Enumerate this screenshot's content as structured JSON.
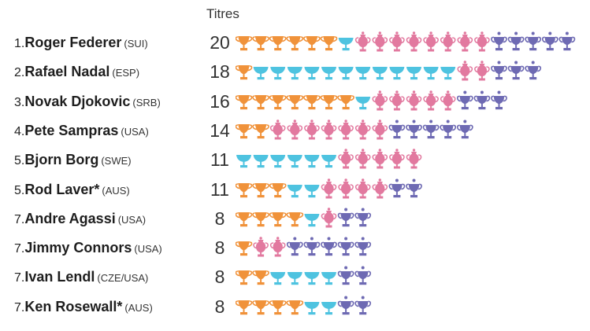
{
  "chart_data": {
    "type": "pictogram",
    "column_header": "Titres",
    "colors": {
      "orange": "#f0923a",
      "blue": "#4ec3e0",
      "pink": "#e2799f",
      "purple": "#6e6ab3"
    },
    "rows": [
      {
        "rank": "1.",
        "name": "Roger Federer",
        "country": "(SUI)",
        "titles": "20",
        "segments": {
          "orange": 6,
          "blue": 1,
          "pink": 8,
          "purple": 5
        }
      },
      {
        "rank": "2.",
        "name": "Rafael Nadal",
        "country": "(ESP)",
        "titles": "18",
        "segments": {
          "orange": 1,
          "blue": 12,
          "pink": 2,
          "purple": 3
        }
      },
      {
        "rank": "3.",
        "name": "Novak Djokovic",
        "country": "(SRB)",
        "titles": "16",
        "segments": {
          "orange": 7,
          "blue": 1,
          "pink": 5,
          "purple": 3
        }
      },
      {
        "rank": "4.",
        "name": "Pete Sampras",
        "country": "(USA)",
        "titles": "14",
        "segments": {
          "orange": 2,
          "blue": 0,
          "pink": 7,
          "purple": 5
        }
      },
      {
        "rank": "5.",
        "name": "Bjorn Borg",
        "country": "(SWE)",
        "titles": "11",
        "segments": {
          "orange": 0,
          "blue": 6,
          "pink": 5,
          "purple": 0
        }
      },
      {
        "rank": "5.",
        "name": "Rod Laver*",
        "country": "(AUS)",
        "titles": "11",
        "segments": {
          "orange": 3,
          "blue": 2,
          "pink": 4,
          "purple": 2
        }
      },
      {
        "rank": "7.",
        "name": "Andre Agassi",
        "country": "(USA)",
        "titles": "8",
        "segments": {
          "orange": 4,
          "blue": 1,
          "pink": 1,
          "purple": 2
        }
      },
      {
        "rank": "7.",
        "name": "Jimmy Connors",
        "country": "(USA)",
        "titles": "8",
        "segments": {
          "orange": 1,
          "blue": 0,
          "pink": 2,
          "purple": 5
        }
      },
      {
        "rank": "7.",
        "name": "Ivan Lendl",
        "country": "(CZE/USA)",
        "titles": "8",
        "segments": {
          "orange": 2,
          "blue": 4,
          "pink": 0,
          "purple": 2
        }
      },
      {
        "rank": "7.",
        "name": "Ken Rosewall*",
        "country": "(AUS)",
        "titles": "8",
        "segments": {
          "orange": 4,
          "blue": 2,
          "pink": 0,
          "purple": 2
        }
      }
    ]
  }
}
